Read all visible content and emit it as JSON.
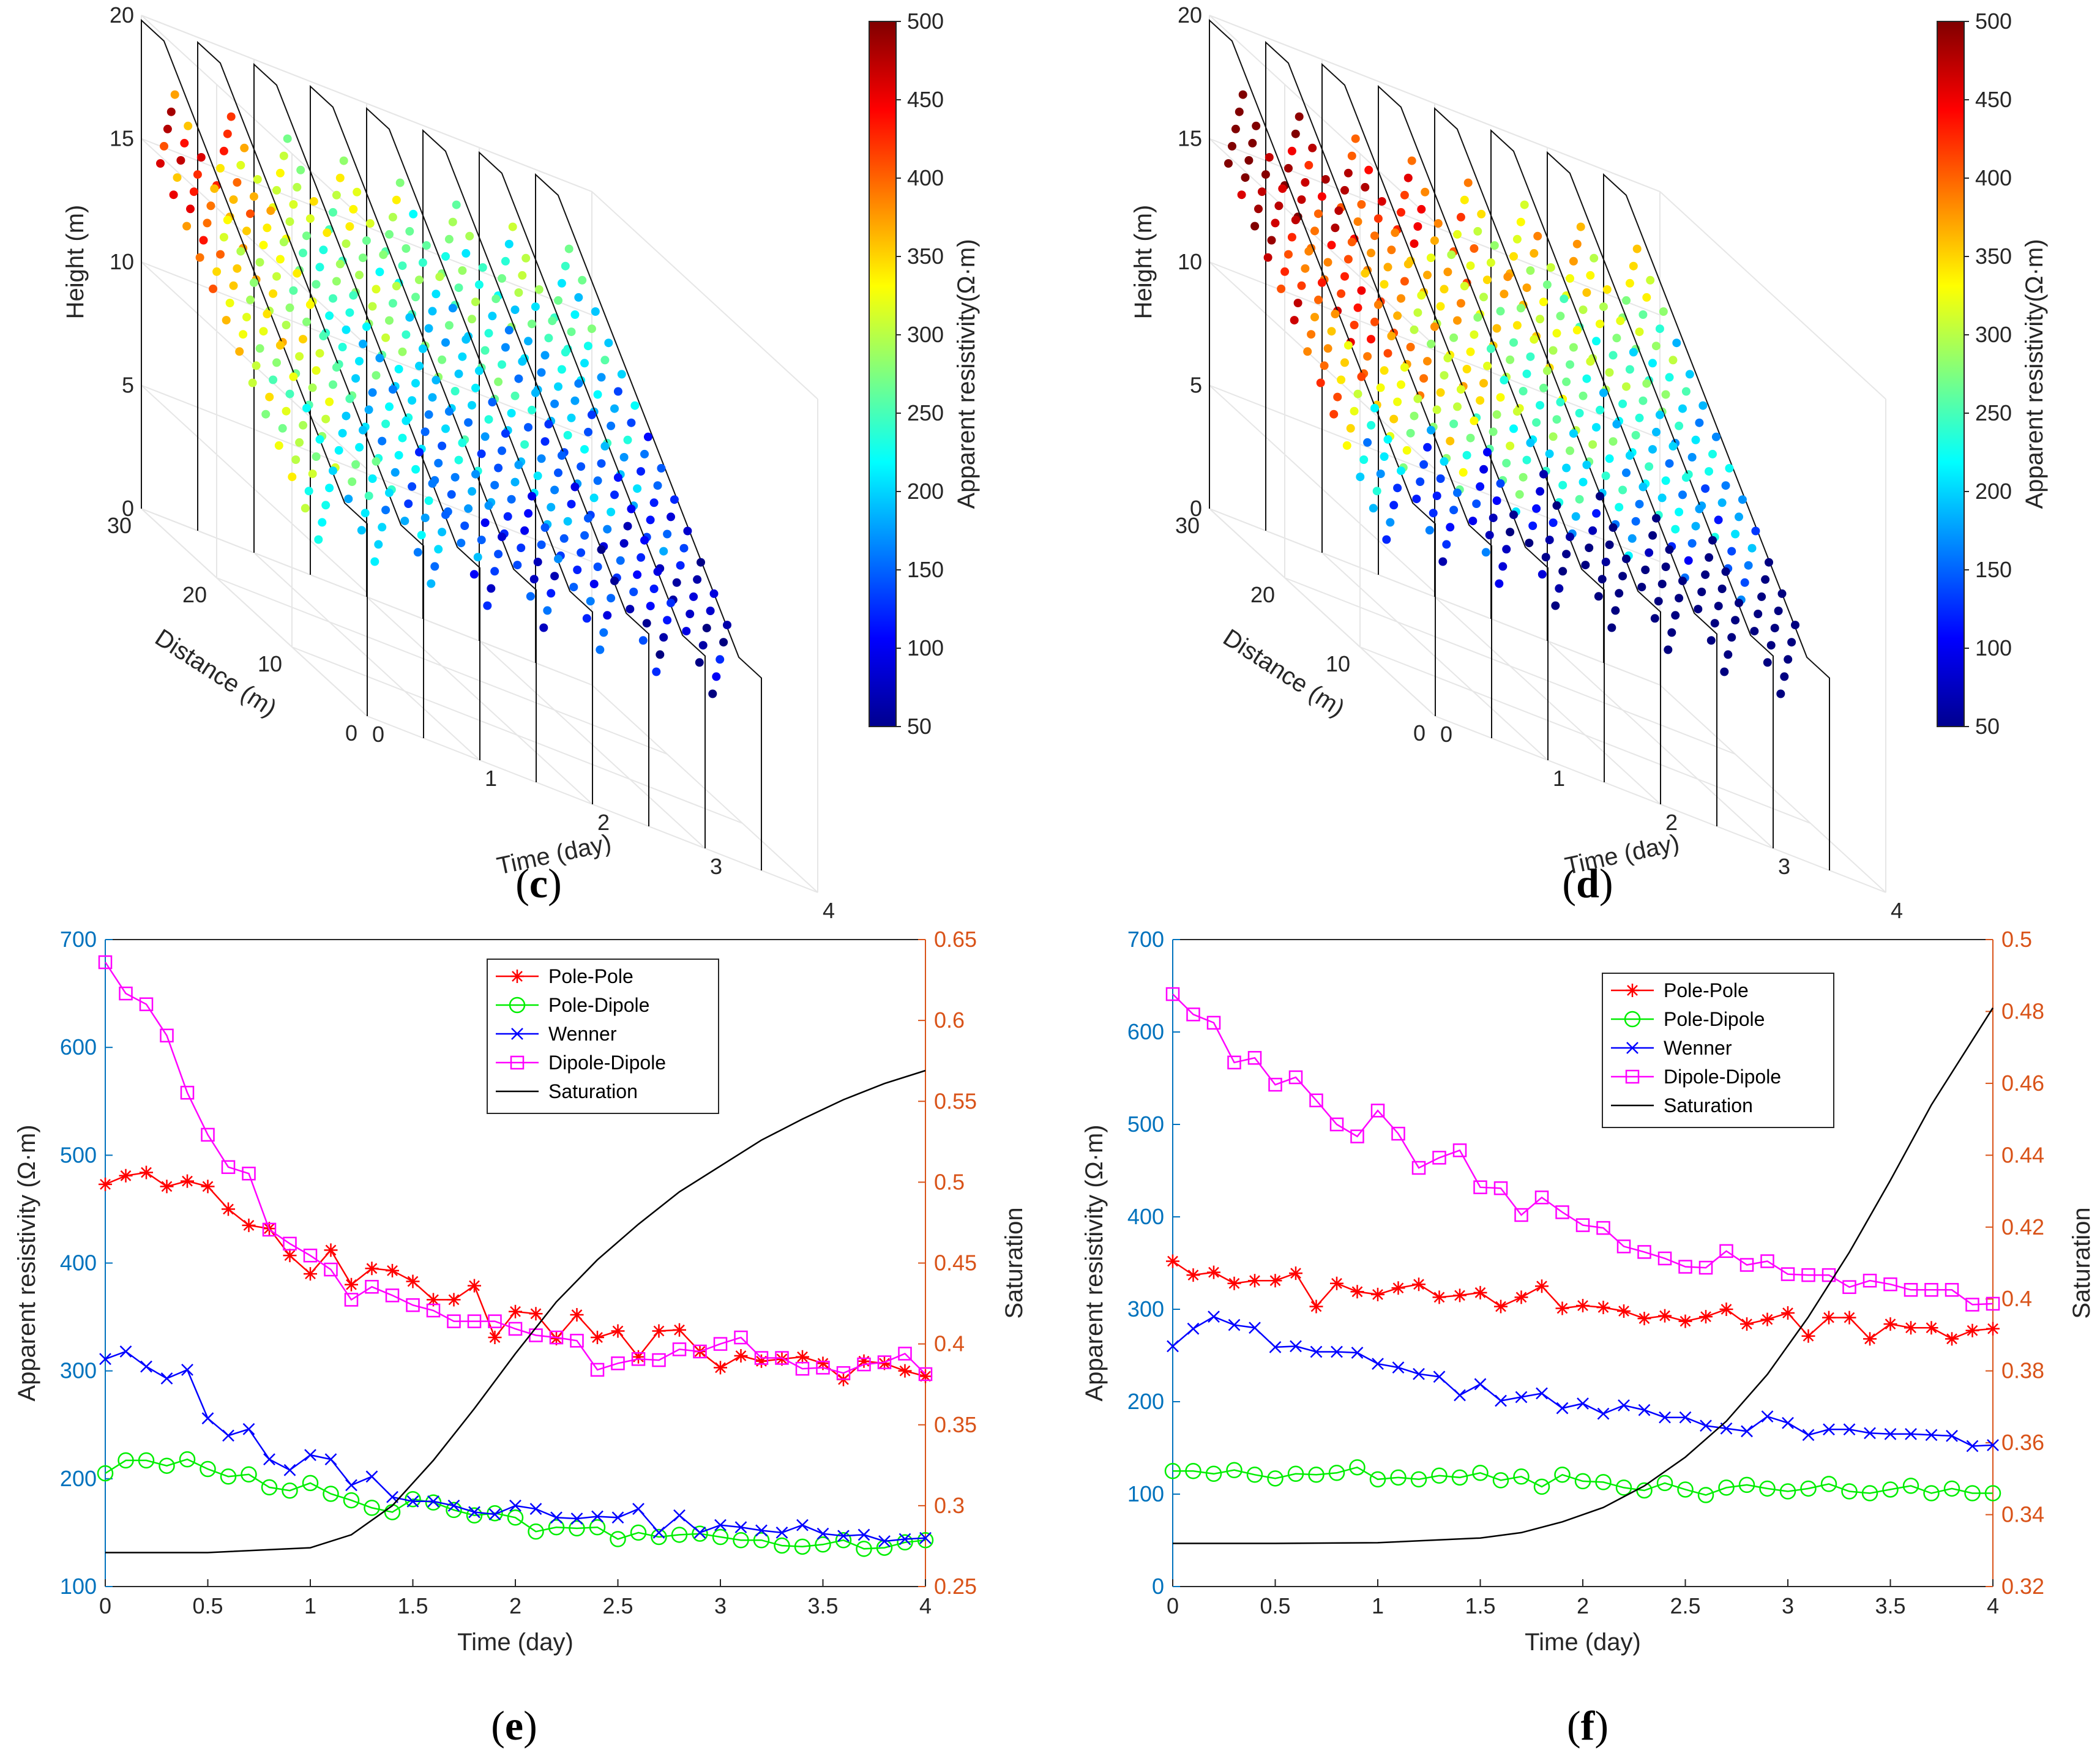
{
  "panels": [
    {
      "id": "c",
      "label": "(c)",
      "letter": "c"
    },
    {
      "id": "d",
      "label": "(d)",
      "letter": "d"
    },
    {
      "id": "e",
      "label": "(e)",
      "letter": "e"
    },
    {
      "id": "f",
      "label": "(f)",
      "letter": "f"
    }
  ],
  "colors": {
    "pole_pole": "#ff0000",
    "pole_dipole": "#00ee00",
    "wenner": "#0000ff",
    "dipole_dipole": "#ff00ff",
    "saturation": "#000000",
    "left_axis": "#0072bd",
    "right_axis": "#d95319"
  },
  "chart_data": [
    {
      "id": "c",
      "type": "scatter3d",
      "zlabel": "Height (m)",
      "ylabel": "Distance (m)",
      "xlabel": "Time (day)",
      "z_ticks": [
        "0",
        "5",
        "10",
        "15",
        "20"
      ],
      "y_ticks": [
        "0",
        "10",
        "20",
        "30"
      ],
      "x_ticks": [
        "0",
        "1",
        "2",
        "3",
        "4"
      ],
      "colorbar": {
        "label": "Apparent resistivity(Ω·m)",
        "ticks": [
          "50",
          "100",
          "150",
          "200",
          "250",
          "300",
          "350",
          "400",
          "450",
          "500"
        ],
        "range": [
          50,
          500
        ]
      },
      "slice_times": [
        0,
        0.5,
        1,
        1.5,
        2,
        2.5,
        3,
        3.5
      ],
      "slice_mean_resistivity": [
        340,
        300,
        240,
        220,
        200,
        190,
        175,
        160
      ]
    },
    {
      "id": "d",
      "type": "scatter3d",
      "zlabel": "Height (m)",
      "ylabel": "Distance (m)",
      "xlabel": "Time (day)",
      "z_ticks": [
        "0",
        "5",
        "10",
        "15",
        "20"
      ],
      "y_ticks": [
        "0",
        "10",
        "20",
        "30"
      ],
      "x_ticks": [
        "0",
        "1",
        "2",
        "3",
        "4"
      ],
      "colorbar": {
        "label": "Apparent resistivity(Ω·m)",
        "ticks": [
          "50",
          "100",
          "150",
          "200",
          "250",
          "300",
          "350",
          "400",
          "450",
          "500"
        ],
        "range": [
          50,
          500
        ]
      },
      "slice_times": [
        0,
        0.5,
        1,
        1.5,
        2,
        2.5,
        3,
        3.5
      ],
      "slice_mean_resistivity": [
        420,
        380,
        340,
        300,
        270,
        240,
        210,
        190
      ]
    },
    {
      "id": "e",
      "type": "line",
      "xlabel": "Time (day)",
      "ylabel": "Apparent resistivity (Ω·m)",
      "y2label": "Saturation",
      "xlim": [
        0,
        4
      ],
      "ylim": [
        100,
        700
      ],
      "y2lim": [
        0.25,
        0.65
      ],
      "x_ticks": [
        "0",
        "0.5",
        "1",
        "1.5",
        "2",
        "2.5",
        "3",
        "3.5",
        "4"
      ],
      "y_ticks": [
        "100",
        "200",
        "300",
        "400",
        "500",
        "600",
        "700"
      ],
      "y2_ticks": [
        "0.25",
        "0.3",
        "0.35",
        "0.4",
        "0.45",
        "0.5",
        "0.55",
        "0.6",
        "0.65"
      ],
      "legend": [
        "Pole-Pole",
        "Pole-Dipole",
        "Wenner",
        "Dipole-Dipole",
        "Saturation"
      ],
      "x": [
        0,
        0.1,
        0.2,
        0.3,
        0.4,
        0.5,
        0.6,
        0.7,
        0.8,
        0.9,
        1,
        1.1,
        1.2,
        1.3,
        1.4,
        1.5,
        1.6,
        1.7,
        1.8,
        1.9,
        2,
        2.1,
        2.2,
        2.3,
        2.4,
        2.5,
        2.6,
        2.7,
        2.8,
        2.9,
        3,
        3.1,
        3.2,
        3.3,
        3.4,
        3.5,
        3.6,
        3.7,
        3.8,
        3.9,
        4
      ],
      "series": [
        {
          "name": "Pole-Pole",
          "marker": "star",
          "values": [
            473,
            481,
            484,
            471,
            476,
            471,
            450,
            435,
            432,
            407,
            390,
            412,
            380,
            395,
            393,
            383,
            366,
            366,
            379,
            331,
            355,
            353,
            330,
            352,
            331,
            337,
            313,
            337,
            338,
            318,
            303,
            314,
            309,
            311,
            313,
            307,
            292,
            309,
            307,
            300,
            295
          ]
        },
        {
          "name": "Pole-Dipole",
          "marker": "circle",
          "values": [
            205,
            217,
            217,
            212,
            218,
            209,
            202,
            204,
            192,
            189,
            196,
            186,
            180,
            173,
            169,
            181,
            178,
            171,
            166,
            168,
            164,
            151,
            155,
            154,
            155,
            144,
            150,
            146,
            148,
            149,
            146,
            143,
            143,
            138,
            137,
            139,
            143,
            135,
            136,
            141,
            143
          ]
        },
        {
          "name": "Wenner",
          "marker": "x",
          "values": [
            311,
            318,
            304,
            293,
            301,
            256,
            240,
            246,
            218,
            208,
            222,
            218,
            194,
            202,
            183,
            179,
            179,
            175,
            169,
            167,
            175,
            172,
            164,
            163,
            165,
            164,
            172,
            150,
            166,
            150,
            157,
            155,
            152,
            150,
            157,
            149,
            147,
            148,
            142,
            144,
            145
          ]
        },
        {
          "name": "Dipole-Dipole",
          "marker": "square",
          "values": [
            679,
            650,
            640,
            611,
            558,
            519,
            489,
            483,
            431,
            418,
            407,
            394,
            366,
            378,
            370,
            361,
            356,
            346,
            346,
            346,
            339,
            333,
            331,
            328,
            301,
            307,
            311,
            310,
            320,
            318,
            325,
            331,
            312,
            312,
            302,
            303,
            298,
            306,
            308,
            316,
            297
          ]
        }
      ],
      "saturation": {
        "x": [
          0,
          0.5,
          1,
          1.2,
          1.4,
          1.6,
          1.8,
          2,
          2.2,
          2.4,
          2.6,
          2.8,
          3,
          3.2,
          3.4,
          3.6,
          3.8,
          4
        ],
        "y2": [
          0.271,
          0.271,
          0.274,
          0.282,
          0.3,
          0.328,
          0.36,
          0.394,
          0.426,
          0.452,
          0.474,
          0.494,
          0.51,
          0.526,
          0.539,
          0.551,
          0.561,
          0.569
        ]
      }
    },
    {
      "id": "f",
      "type": "line",
      "xlabel": "Time (day)",
      "ylabel": "Apparent resistivity (Ω·m)",
      "y2label": "Saturation",
      "xlim": [
        0,
        4
      ],
      "ylim": [
        0,
        700
      ],
      "y2lim": [
        0.32,
        0.5
      ],
      "x_ticks": [
        "0",
        "0.5",
        "1",
        "1.5",
        "2",
        "2.5",
        "3",
        "3.5",
        "4"
      ],
      "y_ticks": [
        "0",
        "100",
        "200",
        "300",
        "400",
        "500",
        "600",
        "700"
      ],
      "y2_ticks": [
        "0.32",
        "0.34",
        "0.36",
        "0.38",
        "0.4",
        "0.42",
        "0.44",
        "0.46",
        "0.48",
        "0.5"
      ],
      "legend": [
        "Pole-Pole",
        "Pole-Dipole",
        "Wenner",
        "Dipole-Dipole",
        "Saturation"
      ],
      "x": [
        0,
        0.1,
        0.2,
        0.3,
        0.4,
        0.5,
        0.6,
        0.7,
        0.8,
        0.9,
        1,
        1.1,
        1.2,
        1.3,
        1.4,
        1.5,
        1.6,
        1.7,
        1.8,
        1.9,
        2,
        2.1,
        2.2,
        2.3,
        2.4,
        2.5,
        2.6,
        2.7,
        2.8,
        2.9,
        3,
        3.1,
        3.2,
        3.3,
        3.4,
        3.5,
        3.6,
        3.7,
        3.8,
        3.9,
        4
      ],
      "series": [
        {
          "name": "Pole-Pole",
          "marker": "star",
          "values": [
            352,
            337,
            340,
            328,
            331,
            331,
            339,
            303,
            328,
            319,
            316,
            323,
            327,
            313,
            315,
            318,
            303,
            313,
            325,
            301,
            304,
            302,
            298,
            290,
            293,
            287,
            292,
            300,
            284,
            289,
            296,
            271,
            291,
            291,
            268,
            284,
            280,
            280,
            268,
            277,
            279
          ]
        },
        {
          "name": "Pole-Dipole",
          "marker": "circle",
          "values": [
            125,
            125,
            122,
            126,
            121,
            117,
            122,
            121,
            123,
            129,
            116,
            118,
            116,
            120,
            118,
            123,
            115,
            119,
            108,
            121,
            114,
            113,
            107,
            104,
            112,
            105,
            99,
            107,
            110,
            106,
            103,
            106,
            111,
            103,
            101,
            105,
            109,
            101,
            106,
            101,
            101
          ]
        },
        {
          "name": "Wenner",
          "marker": "x",
          "values": [
            260,
            279,
            292,
            283,
            280,
            259,
            260,
            254,
            254,
            253,
            241,
            237,
            230,
            227,
            207,
            219,
            201,
            205,
            209,
            193,
            198,
            187,
            196,
            191,
            183,
            183,
            174,
            171,
            168,
            184,
            177,
            164,
            170,
            170,
            166,
            165,
            165,
            164,
            163,
            152,
            153
          ]
        },
        {
          "name": "Dipole-Dipole",
          "marker": "square",
          "values": [
            641,
            619,
            610,
            567,
            572,
            543,
            551,
            526,
            500,
            487,
            515,
            490,
            453,
            464,
            472,
            432,
            431,
            402,
            421,
            405,
            391,
            388,
            368,
            362,
            355,
            346,
            345,
            363,
            348,
            352,
            338,
            337,
            337,
            324,
            331,
            327,
            321,
            321,
            321,
            305,
            306
          ]
        }
      ],
      "saturation": {
        "x": [
          0,
          0.5,
          1,
          1.5,
          1.7,
          1.9,
          2.1,
          2.3,
          2.5,
          2.7,
          2.9,
          3.1,
          3.3,
          3.5,
          3.7,
          3.9,
          4
        ],
        "y2": [
          0.332,
          0.332,
          0.3322,
          0.3335,
          0.335,
          0.338,
          0.342,
          0.348,
          0.356,
          0.366,
          0.379,
          0.395,
          0.413,
          0.433,
          0.454,
          0.472,
          0.481
        ]
      }
    }
  ]
}
